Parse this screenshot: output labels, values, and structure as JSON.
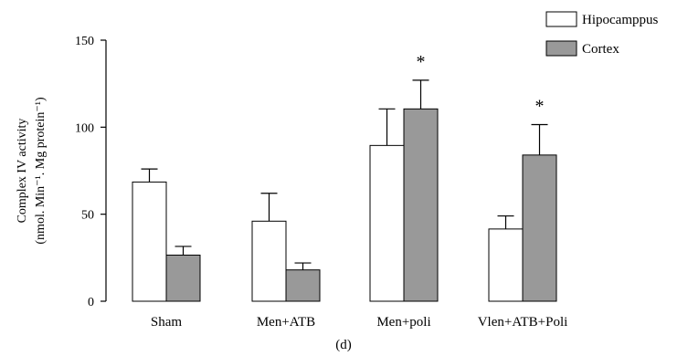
{
  "chart_data": {
    "type": "bar",
    "categories": [
      "Sham",
      "Men+ATB",
      "Men+poli",
      "Vlen+ATB+Poli"
    ],
    "series": [
      {
        "name": "Hipocamppus",
        "values": [
          68.5,
          46,
          89.5,
          41.5
        ],
        "errors": [
          7.5,
          16,
          21,
          7.5
        ],
        "color": "#ffffff"
      },
      {
        "name": "Cortex",
        "values": [
          26.5,
          18,
          110.5,
          84
        ],
        "errors": [
          5,
          4,
          16.5,
          17.5
        ],
        "color": "#999999"
      }
    ],
    "ylabel_line1": "Complex IV activity",
    "ylabel_line2": "(nmol. Min⁻¹. Mg protein⁻¹)",
    "yticks": [
      0,
      50,
      100,
      150
    ],
    "ylim": [
      0,
      150
    ],
    "significance": [
      {
        "category": "Men+poli",
        "series": "Cortex",
        "symbol": "*"
      },
      {
        "category": "Vlen+ATB+Poli",
        "series": "Cortex",
        "symbol": "*"
      }
    ],
    "panel_label": "(d)",
    "legend_position": "top-right",
    "grid": false
  }
}
